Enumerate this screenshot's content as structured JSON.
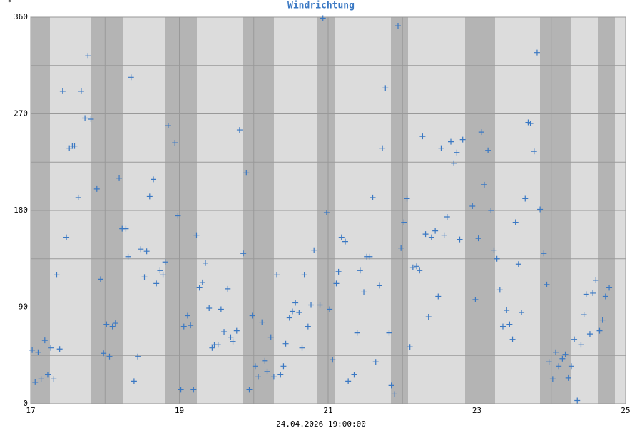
{
  "chart_data": {
    "type": "scatter",
    "title": "Windrichtung",
    "y_unit": "°",
    "footer": "24.04.2026 19:00:00",
    "xlim": [
      17,
      25
    ],
    "xticks": [
      17,
      19,
      21,
      23,
      25
    ],
    "minor_xticks": [
      18,
      20,
      22,
      24
    ],
    "ylim": [
      0,
      360
    ],
    "yticks": [
      0,
      90,
      180,
      270,
      360
    ],
    "minor_yticks": [
      45,
      135,
      225,
      315
    ],
    "grid": true,
    "color": "#3a78c3",
    "x": [
      17.02,
      17.06,
      17.1,
      17.14,
      17.19,
      17.23,
      17.27,
      17.31,
      17.35,
      17.39,
      17.43,
      17.48,
      17.52,
      17.56,
      17.59,
      17.64,
      17.68,
      17.73,
      17.77,
      17.81,
      17.89,
      17.94,
      17.98,
      18.02,
      18.06,
      18.1,
      18.14,
      18.19,
      18.23,
      18.28,
      18.31,
      18.35,
      18.39,
      18.44,
      18.48,
      18.53,
      18.56,
      18.6,
      18.65,
      18.69,
      18.74,
      18.78,
      18.81,
      18.85,
      18.94,
      18.98,
      19.02,
      19.06,
      19.11,
      19.15,
      19.19,
      19.23,
      19.27,
      19.31,
      19.35,
      19.4,
      19.44,
      19.47,
      19.52,
      19.56,
      19.6,
      19.65,
      19.69,
      19.72,
      19.77,
      19.81,
      19.86,
      19.9,
      19.94,
      19.98,
      20.02,
      20.06,
      20.11,
      20.15,
      20.18,
      20.23,
      20.27,
      20.31,
      20.36,
      20.4,
      20.43,
      20.48,
      20.52,
      20.56,
      20.61,
      20.65,
      20.68,
      20.73,
      20.77,
      20.81,
      20.89,
      20.93,
      20.98,
      21.02,
      21.06,
      21.11,
      21.14,
      21.18,
      21.23,
      21.27,
      21.35,
      21.39,
      21.43,
      21.48,
      21.52,
      21.56,
      21.6,
      21.64,
      21.69,
      21.73,
      21.77,
      21.82,
      21.85,
      21.89,
      21.94,
      21.98,
      22.02,
      22.06,
      22.1,
      22.14,
      22.19,
      22.23,
      22.27,
      22.31,
      22.35,
      22.39,
      22.44,
      22.48,
      22.52,
      22.56,
      22.6,
      22.65,
      22.69,
      22.73,
      22.77,
      22.81,
      22.94,
      22.98,
      23.02,
      23.06,
      23.1,
      23.15,
      23.19,
      23.23,
      23.27,
      23.31,
      23.35,
      23.4,
      23.44,
      23.48,
      23.52,
      23.56,
      23.6,
      23.65,
      23.69,
      23.72,
      23.77,
      23.81,
      23.85,
      23.9,
      23.94,
      23.97,
      24.02,
      24.06,
      24.1,
      24.15,
      24.19,
      24.23,
      24.27,
      24.31,
      24.35,
      24.4,
      24.44,
      24.47,
      24.52,
      24.56,
      24.6,
      24.65,
      24.69,
      24.73,
      24.78
    ],
    "values": [
      50,
      20,
      48,
      23,
      59,
      27,
      52,
      23,
      120,
      51,
      291,
      155,
      238,
      240,
      240,
      192,
      291,
      266,
      324,
      265,
      200,
      116,
      47,
      74,
      44,
      72,
      75,
      210,
      163,
      163,
      137,
      304,
      21,
      44,
      144,
      118,
      142,
      193,
      209,
      112,
      124,
      120,
      132,
      259,
      243,
      175,
      13,
      72,
      82,
      73,
      13,
      157,
      108,
      113,
      131,
      89,
      52,
      55,
      55,
      88,
      67,
      107,
      62,
      58,
      68,
      255,
      140,
      215,
      13,
      82,
      35,
      25,
      76,
      40,
      30,
      62,
      25,
      120,
      27,
      35,
      56,
      80,
      86,
      94,
      85,
      52,
      120,
      72,
      92,
      143,
      92,
      359,
      178,
      88,
      41,
      112,
      123,
      155,
      151,
      21,
      27,
      66,
      124,
      104,
      137,
      137,
      192,
      39,
      110,
      238,
      294,
      66,
      17,
      9,
      352,
      145,
      169,
      191,
      53,
      127,
      128,
      124,
      249,
      158,
      81,
      155,
      161,
      100,
      238,
      157,
      174,
      244,
      224,
      234,
      153,
      246,
      184,
      97,
      154,
      253,
      204,
      236,
      180,
      143,
      135,
      106,
      72,
      87,
      74,
      60,
      169,
      130,
      85,
      191,
      262,
      261,
      235,
      327,
      181,
      140,
      111,
      39,
      23,
      48,
      35,
      42,
      46,
      24,
      35,
      60,
      3,
      55,
      83,
      102,
      65,
      103,
      115,
      68,
      78,
      100,
      108
    ]
  }
}
